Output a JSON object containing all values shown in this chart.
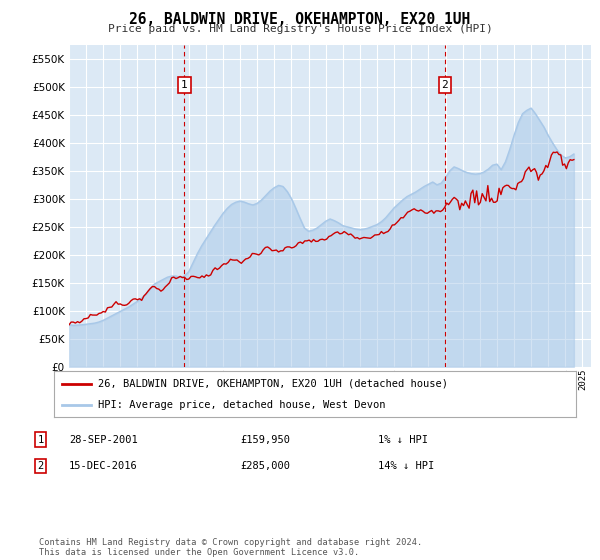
{
  "title": "26, BALDWIN DRIVE, OKEHAMPTON, EX20 1UH",
  "subtitle": "Price paid vs. HM Land Registry's House Price Index (HPI)",
  "ylim": [
    0,
    575000
  ],
  "yticks": [
    0,
    50000,
    100000,
    150000,
    200000,
    250000,
    300000,
    350000,
    400000,
    450000,
    500000,
    550000
  ],
  "xlim_start": 1995.0,
  "xlim_end": 2025.5,
  "fig_bg": "#ffffff",
  "plot_bg": "#dce9f5",
  "grid_color": "#ffffff",
  "hpi_color": "#a8c8e8",
  "hpi_fill_alpha": 0.5,
  "price_color": "#cc0000",
  "sale1_x": 2001.747,
  "sale1_y": 159950,
  "sale1_label": "1",
  "sale1_date": "28-SEP-2001",
  "sale1_price": "£159,950",
  "sale1_hpi": "1% ↓ HPI",
  "sale2_x": 2016.958,
  "sale2_y": 285000,
  "sale2_label": "2",
  "sale2_date": "15-DEC-2016",
  "sale2_price": "£285,000",
  "sale2_hpi": "14% ↓ HPI",
  "legend_line1": "26, BALDWIN DRIVE, OKEHAMPTON, EX20 1UH (detached house)",
  "legend_line2": "HPI: Average price, detached house, West Devon",
  "footer": "Contains HM Land Registry data © Crown copyright and database right 2024.\nThis data is licensed under the Open Government Licence v3.0.",
  "hpi_data_x": [
    1995.0,
    1995.25,
    1995.5,
    1995.75,
    1996.0,
    1996.25,
    1996.5,
    1996.75,
    1997.0,
    1997.25,
    1997.5,
    1997.75,
    1998.0,
    1998.25,
    1998.5,
    1998.75,
    1999.0,
    1999.25,
    1999.5,
    1999.75,
    2000.0,
    2000.25,
    2000.5,
    2000.75,
    2001.0,
    2001.25,
    2001.5,
    2001.75,
    2002.0,
    2002.25,
    2002.5,
    2002.75,
    2003.0,
    2003.25,
    2003.5,
    2003.75,
    2004.0,
    2004.25,
    2004.5,
    2004.75,
    2005.0,
    2005.25,
    2005.5,
    2005.75,
    2006.0,
    2006.25,
    2006.5,
    2006.75,
    2007.0,
    2007.25,
    2007.5,
    2007.75,
    2008.0,
    2008.25,
    2008.5,
    2008.75,
    2009.0,
    2009.25,
    2009.5,
    2009.75,
    2010.0,
    2010.25,
    2010.5,
    2010.75,
    2011.0,
    2011.25,
    2011.5,
    2011.75,
    2012.0,
    2012.25,
    2012.5,
    2012.75,
    2013.0,
    2013.25,
    2013.5,
    2013.75,
    2014.0,
    2014.25,
    2014.5,
    2014.75,
    2015.0,
    2015.25,
    2015.5,
    2015.75,
    2016.0,
    2016.25,
    2016.5,
    2016.75,
    2017.0,
    2017.25,
    2017.5,
    2017.75,
    2018.0,
    2018.25,
    2018.5,
    2018.75,
    2019.0,
    2019.25,
    2019.5,
    2019.75,
    2020.0,
    2020.25,
    2020.5,
    2020.75,
    2021.0,
    2021.25,
    2021.5,
    2021.75,
    2022.0,
    2022.25,
    2022.5,
    2022.75,
    2023.0,
    2023.25,
    2023.5,
    2023.75,
    2024.0,
    2024.25,
    2024.5
  ],
  "hpi_data_y": [
    75000,
    74000,
    74500,
    75000,
    76000,
    77000,
    78000,
    80000,
    83000,
    87000,
    91000,
    95000,
    99000,
    103000,
    107000,
    112000,
    117000,
    123000,
    130000,
    140000,
    148000,
    152000,
    156000,
    160000,
    162000,
    162000,
    160000,
    162000,
    170000,
    186000,
    202000,
    216000,
    228000,
    240000,
    252000,
    263000,
    274000,
    283000,
    290000,
    294000,
    296000,
    294000,
    291000,
    289000,
    292000,
    298000,
    306000,
    314000,
    320000,
    324000,
    322000,
    313000,
    300000,
    283000,
    265000,
    248000,
    242000,
    244000,
    248000,
    254000,
    260000,
    264000,
    261000,
    257000,
    252000,
    250000,
    248000,
    246000,
    245000,
    246000,
    248000,
    251000,
    254000,
    259000,
    266000,
    275000,
    284000,
    291000,
    298000,
    304000,
    308000,
    312000,
    317000,
    322000,
    326000,
    330000,
    325000,
    328000,
    338000,
    350000,
    357000,
    354000,
    350000,
    347000,
    345000,
    344000,
    345000,
    348000,
    353000,
    360000,
    362000,
    352000,
    366000,
    388000,
    413000,
    436000,
    452000,
    458000,
    462000,
    452000,
    440000,
    428000,
    413000,
    400000,
    388000,
    378000,
    373000,
    375000,
    380000
  ]
}
